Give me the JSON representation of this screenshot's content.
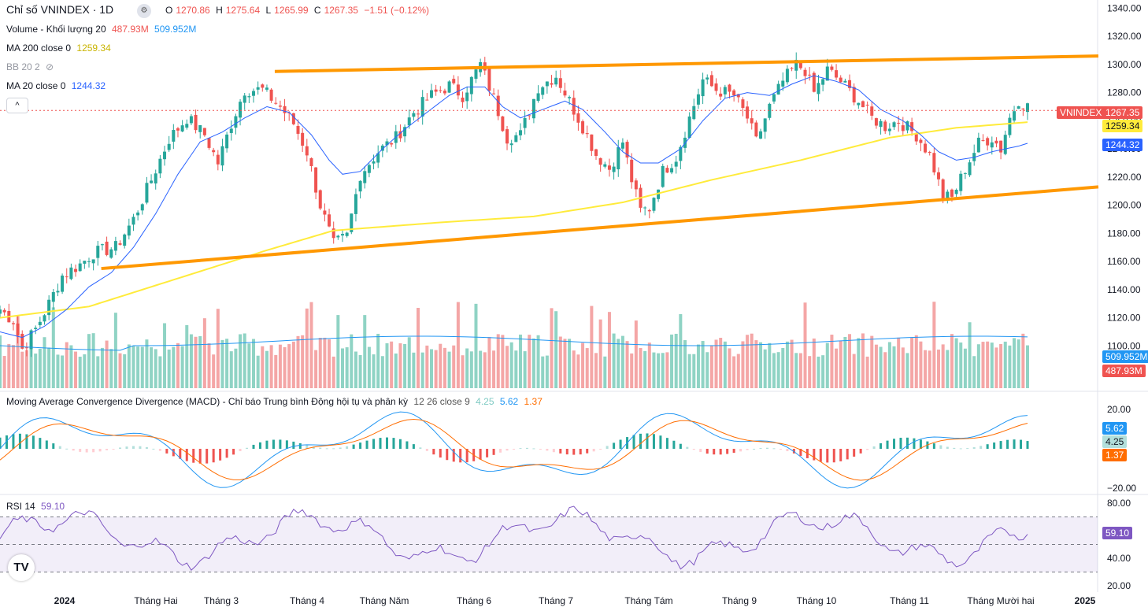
{
  "header": {
    "title": "Chỉ số VNINDEX · 1D",
    "ohlc": {
      "o_label": "O",
      "o": "1270.86",
      "h_label": "H",
      "h": "1275.64",
      "l_label": "L",
      "l": "1265.99",
      "c_label": "C",
      "c": "1267.35",
      "change": "−1.51 (−0.12%)"
    },
    "volume_label": "Volume - Khối lượng 20",
    "volume_val": "487.93M",
    "volume_ma": "509.952M",
    "ma200_label": "MA 200 close 0",
    "ma200_val": "1259.34",
    "bb_label": "BB 20 2",
    "ma20_label": "MA 20 close 0",
    "ma20_val": "1244.32"
  },
  "macd_legend": {
    "label": "Moving Average Convergence Divergence (MACD) - Chỉ báo Trung bình Động hội tụ và phân kỳ",
    "params": "12 26 close 9",
    "hist": "4.25",
    "macd": "5.62",
    "signal": "1.37"
  },
  "rsi_legend": {
    "label": "RSI 14",
    "value": "59.10"
  },
  "price_badges": {
    "symbol": "VNINDEX",
    "last": "1267.35",
    "ma200": "1259.34",
    "ma20": "1244.32",
    "vol_ma": "509.952M",
    "vol": "487.93M"
  },
  "macd_badges": {
    "macd": "5.62",
    "hist": "4.25",
    "signal": "1.37"
  },
  "rsi_badge": "59.10",
  "collapse_icon": "chevron-up-icon",
  "colors": {
    "up": "#26a69a",
    "down": "#ef5350",
    "ma200": "#ffeb3b",
    "ma20": "#2962ff",
    "trend": "#ff9800",
    "macd": "#2196f3",
    "signal": "#ff6d00",
    "rsi": "#7e57c2"
  },
  "chart_data": [
    {
      "type": "candlestick",
      "title": "Chỉ số VNINDEX · 1D",
      "yticks": [
        "1340.00",
        "1320.00",
        "1300.00",
        "1280.00",
        "1260.00",
        "1240.00",
        "1220.00",
        "1200.00",
        "1180.00",
        "1160.00",
        "1140.00",
        "1120.00",
        "1100.00",
        "1080.00"
      ],
      "ylim": [
        1070,
        1343
      ],
      "xticks": [
        "2024",
        "Tháng Hai",
        "Tháng 3",
        "Tháng 4",
        "Tháng Năm",
        "Tháng 6",
        "Tháng 7",
        "Tháng Tám",
        "Tháng 9",
        "Tháng 10",
        "Tháng 11",
        "Tháng Mười hai",
        "2025"
      ],
      "close_path": [
        [
          0,
          1126
        ],
        [
          6,
          1118
        ],
        [
          10,
          1098
        ],
        [
          16,
          1112
        ],
        [
          22,
          1130
        ],
        [
          28,
          1150
        ],
        [
          36,
          1158
        ],
        [
          42,
          1166
        ],
        [
          52,
          1170
        ],
        [
          60,
          1190
        ],
        [
          68,
          1218
        ],
        [
          76,
          1247
        ],
        [
          84,
          1262
        ],
        [
          92,
          1250
        ],
        [
          98,
          1230
        ],
        [
          104,
          1258
        ],
        [
          110,
          1282
        ],
        [
          118,
          1282
        ],
        [
          126,
          1270
        ],
        [
          132,
          1258
        ],
        [
          138,
          1238
        ],
        [
          144,
          1200
        ],
        [
          150,
          1172
        ],
        [
          156,
          1178
        ],
        [
          162,
          1222
        ],
        [
          170,
          1238
        ],
        [
          178,
          1248
        ],
        [
          186,
          1266
        ],
        [
          194,
          1278
        ],
        [
          202,
          1285
        ],
        [
          208,
          1278
        ],
        [
          216,
          1300
        ],
        [
          222,
          1276
        ],
        [
          228,
          1248
        ],
        [
          234,
          1250
        ],
        [
          242,
          1284
        ],
        [
          250,
          1292
        ],
        [
          256,
          1274
        ],
        [
          262,
          1256
        ],
        [
          268,
          1236
        ],
        [
          274,
          1226
        ],
        [
          280,
          1245
        ],
        [
          284,
          1218
        ],
        [
          288,
          1196
        ],
        [
          292,
          1198
        ],
        [
          298,
          1224
        ],
        [
          304,
          1234
        ],
        [
          310,
          1262
        ],
        [
          316,
          1289
        ],
        [
          322,
          1282
        ],
        [
          330,
          1278
        ],
        [
          336,
          1262
        ],
        [
          340,
          1245
        ],
        [
          346,
          1270
        ],
        [
          352,
          1288
        ],
        [
          358,
          1300
        ],
        [
          362,
          1296
        ],
        [
          366,
          1280
        ],
        [
          372,
          1296
        ],
        [
          378,
          1288
        ],
        [
          386,
          1274
        ],
        [
          392,
          1262
        ],
        [
          398,
          1256
        ],
        [
          404,
          1260
        ],
        [
          412,
          1250
        ],
        [
          418,
          1236
        ],
        [
          424,
          1206
        ],
        [
          428,
          1205
        ],
        [
          434,
          1226
        ],
        [
          440,
          1244
        ],
        [
          446,
          1248
        ],
        [
          450,
          1240
        ],
        [
          454,
          1262
        ],
        [
          458,
          1275
        ],
        [
          462,
          1270
        ]
      ],
      "ma20_path": [
        [
          0,
          1110
        ],
        [
          10,
          1106
        ],
        [
          20,
          1114
        ],
        [
          30,
          1126
        ],
        [
          40,
          1142
        ],
        [
          50,
          1152
        ],
        [
          60,
          1170
        ],
        [
          70,
          1194
        ],
        [
          80,
          1222
        ],
        [
          90,
          1245
        ],
        [
          100,
          1252
        ],
        [
          110,
          1262
        ],
        [
          120,
          1270
        ],
        [
          130,
          1266
        ],
        [
          140,
          1250
        ],
        [
          148,
          1232
        ],
        [
          154,
          1222
        ],
        [
          162,
          1224
        ],
        [
          172,
          1240
        ],
        [
          182,
          1254
        ],
        [
          192,
          1266
        ],
        [
          202,
          1278
        ],
        [
          210,
          1284
        ],
        [
          218,
          1284
        ],
        [
          226,
          1270
        ],
        [
          234,
          1262
        ],
        [
          244,
          1268
        ],
        [
          254,
          1274
        ],
        [
          262,
          1268
        ],
        [
          272,
          1252
        ],
        [
          280,
          1238
        ],
        [
          288,
          1230
        ],
        [
          296,
          1230
        ],
        [
          306,
          1240
        ],
        [
          316,
          1260
        ],
        [
          326,
          1276
        ],
        [
          336,
          1280
        ],
        [
          346,
          1278
        ],
        [
          356,
          1286
        ],
        [
          366,
          1292
        ],
        [
          376,
          1288
        ],
        [
          386,
          1282
        ],
        [
          396,
          1268
        ],
        [
          406,
          1260
        ],
        [
          414,
          1250
        ],
        [
          422,
          1238
        ],
        [
          430,
          1232
        ],
        [
          438,
          1234
        ],
        [
          446,
          1238
        ],
        [
          452,
          1240
        ],
        [
          458,
          1242
        ],
        [
          462,
          1244
        ]
      ],
      "ma200_path": [
        [
          0,
          1120
        ],
        [
          40,
          1128
        ],
        [
          80,
          1148
        ],
        [
          120,
          1168
        ],
        [
          150,
          1182
        ],
        [
          200,
          1188
        ],
        [
          240,
          1192
        ],
        [
          280,
          1202
        ],
        [
          320,
          1218
        ],
        [
          360,
          1232
        ],
        [
          400,
          1248
        ],
        [
          430,
          1255
        ],
        [
          462,
          1259
        ]
      ],
      "trendlines": [
        {
          "from": [
            120,
            1295
          ],
          "to": [
            462,
            1306
          ]
        },
        {
          "from": [
            42,
            1155
          ],
          "to": [
            462,
            1213
          ]
        }
      ]
    },
    {
      "type": "bar",
      "title": "Volume - Khối lượng 20",
      "series": [
        {
          "name": "Volume"
        }
      ]
    },
    {
      "type": "line",
      "title": "Moving Average Convergence Divergence (MACD)",
      "yticks": [
        "20.00",
        "−20.00"
      ],
      "ylim": [
        -22,
        22
      ],
      "series": [
        {
          "name": "MACD",
          "last": 5.62
        },
        {
          "name": "Signal",
          "last": 1.37
        },
        {
          "name": "Histogram",
          "last": 4.25
        }
      ]
    },
    {
      "type": "line",
      "title": "RSI 14",
      "yticks": [
        "80.00",
        "40.00",
        "20.00"
      ],
      "ylim": [
        18,
        82
      ],
      "bands": [
        70,
        50,
        30
      ],
      "series": [
        {
          "name": "RSI",
          "last": 59.1
        }
      ]
    }
  ]
}
